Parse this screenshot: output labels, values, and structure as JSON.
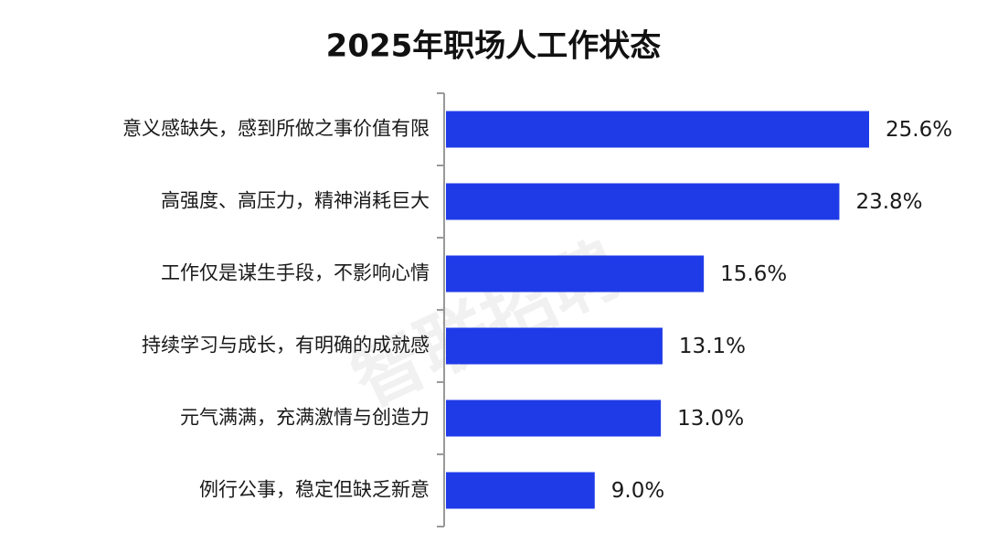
{
  "watermark": "智联招聘",
  "chart_data": {
    "type": "bar",
    "orientation": "horizontal",
    "title": "2025年职场人工作状态",
    "xlabel": "",
    "ylabel": "",
    "xlim": [
      0,
      27
    ],
    "grid": false,
    "bar_color": "#1f3be8",
    "categories": [
      "意义感缺失，感到所做之事价值有限",
      "高强度、高压力，精神消耗巨大",
      "工作仅是谋生手段，不影响心情",
      "持续学习与成长，有明确的成就感",
      "元气满满，充满激情与创造力",
      "例行公事，稳定但缺乏新意"
    ],
    "values": [
      25.6,
      23.8,
      15.6,
      13.1,
      13.0,
      9.0
    ],
    "value_labels": [
      "25.6%",
      "23.8%",
      "15.6%",
      "13.1%",
      "13.0%",
      "9.0%"
    ]
  }
}
